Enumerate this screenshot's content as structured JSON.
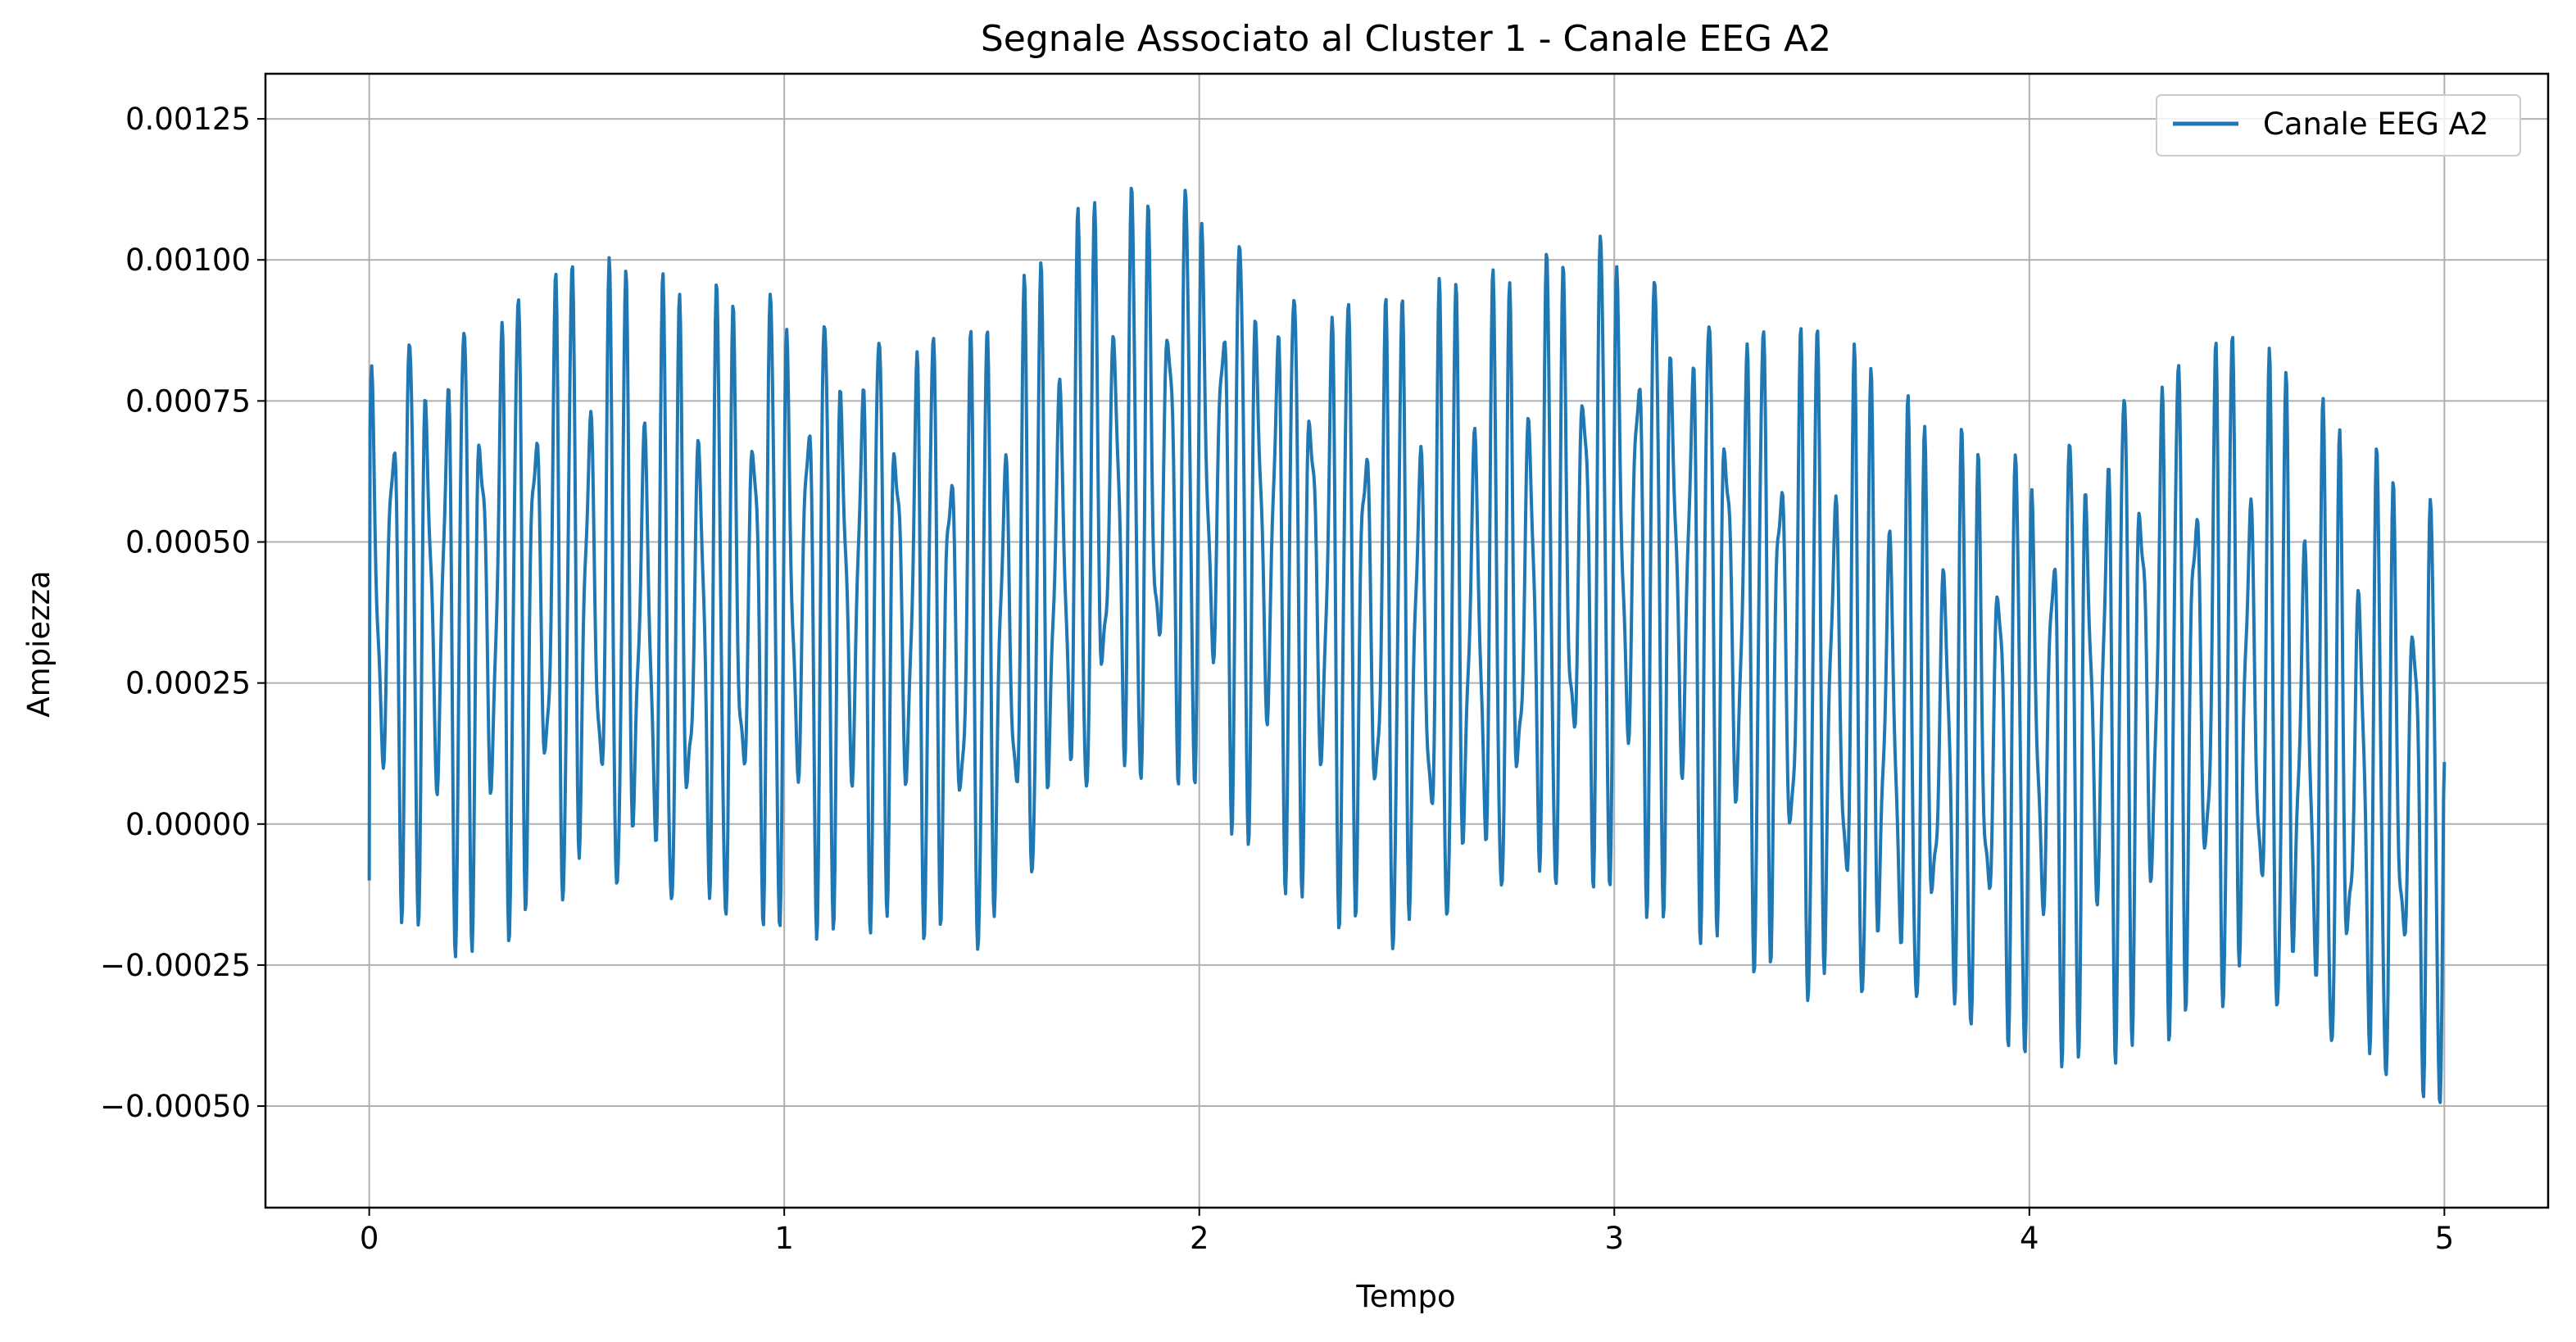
{
  "chart_data": {
    "type": "line",
    "title": "Segnale Associato al Cluster 1 - Canale EEG A2",
    "xlabel": "Tempo",
    "ylabel": "Ampiezza",
    "xlim": [
      -0.25,
      5.25
    ],
    "ylim": [
      -0.00068,
      0.00133
    ],
    "xticks": [
      0,
      1,
      2,
      3,
      4,
      5
    ],
    "xtick_labels": [
      "0",
      "1",
      "2",
      "3",
      "4",
      "5"
    ],
    "yticks": [
      -0.0005,
      -0.00025,
      0.0,
      0.00025,
      0.0005,
      0.00075,
      0.001,
      0.00125
    ],
    "ytick_labels": [
      "−0.00050",
      "−0.00025",
      "0.00000",
      "0.00025",
      "0.00050",
      "0.00075",
      "0.00100",
      "0.00125"
    ],
    "grid": true,
    "legend_position": "top-right",
    "series": [
      {
        "name": "Canale EEG A2",
        "color": "#1f77b4",
        "sampling_rate_hz": 500,
        "x_start": 0,
        "x_end": 5,
        "envelope": {
          "x": [
            0,
            0.25,
            0.5,
            0.75,
            1.0,
            1.25,
            1.5,
            1.75,
            2.0,
            2.25,
            2.5,
            2.75,
            3.0,
            3.25,
            3.5,
            3.75,
            4.0,
            4.25,
            4.5,
            4.75,
            5.0
          ],
          "max": [
            0.00097,
            0.00105,
            0.00109,
            0.00102,
            0.00106,
            0.00101,
            0.00097,
            0.00118,
            0.00124,
            0.00108,
            0.00103,
            0.00104,
            0.00118,
            0.00104,
            0.00098,
            0.00078,
            0.00076,
            0.00095,
            0.00097,
            0.00078,
            0.00067
          ],
          "min": [
            -0.0002,
            -0.00031,
            -0.00024,
            -0.00031,
            -0.00028,
            -0.00024,
            -0.00035,
            -7e-05,
            -2e-05,
            -0.00021,
            -0.00036,
            -0.00027,
            -0.00021,
            -0.00028,
            -0.00046,
            -0.00047,
            -0.0005,
            -0.00048,
            -0.00044,
            -0.00057,
            -0.00059
          ],
          "first_value": -0.0001,
          "last_value": 0.00011
        }
      }
    ]
  }
}
